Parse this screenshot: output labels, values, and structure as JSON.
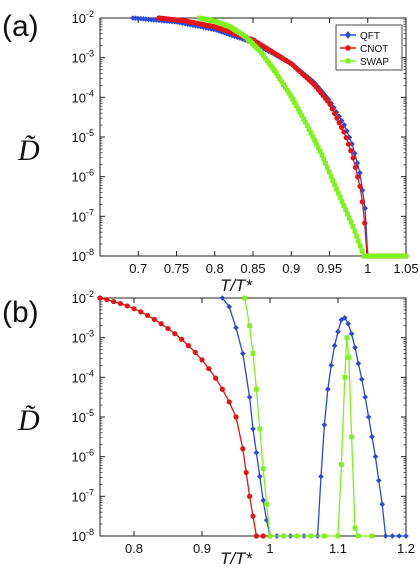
{
  "colors": {
    "QFT": "#2a49d6",
    "CNOT": "#e21414",
    "SWAP": "#7ff21c"
  },
  "chart_data": [
    {
      "panel_label": "(a)",
      "type": "line",
      "xlabel": "T/T*",
      "ylabel": "D̃",
      "y_scale": "log",
      "xlim": [
        0.65,
        1.05
      ],
      "ylim": [
        1e-08,
        0.01
      ],
      "x_ticks": [
        "0.7",
        "0.75",
        "0.8",
        "0.85",
        "0.9",
        "0.95",
        "1",
        "1.05"
      ],
      "y_tick_exponents": [
        "-8",
        "-7",
        "-6",
        "-5",
        "-4",
        "-3",
        "-2"
      ],
      "legend": {
        "position": "top-right",
        "entries": [
          "QFT",
          "CNOT",
          "SWAP"
        ]
      },
      "series": [
        {
          "name": "QFT",
          "x_start": 0.693,
          "x_end": 1.0,
          "y_log10": [
            [
              0.693,
              -2.0
            ],
            [
              0.75,
              -2.1
            ],
            [
              0.8,
              -2.29
            ],
            [
              0.85,
              -2.62
            ],
            [
              0.9,
              -3.15
            ],
            [
              0.93,
              -3.62
            ],
            [
              0.95,
              -4.08
            ],
            [
              0.97,
              -4.72
            ],
            [
              0.98,
              -5.2
            ],
            [
              0.99,
              -5.92
            ],
            [
              0.997,
              -6.85
            ],
            [
              1.0,
              -8.0
            ]
          ],
          "tail_x": [
            1.0,
            1.05
          ],
          "tail_y_log10": -8
        },
        {
          "name": "CNOT",
          "x_start": 0.727,
          "x_end": 0.999,
          "y_log10": [
            [
              0.727,
              -2.0
            ],
            [
              0.76,
              -2.07
            ],
            [
              0.8,
              -2.22
            ],
            [
              0.85,
              -2.55
            ],
            [
              0.9,
              -3.15
            ],
            [
              0.93,
              -3.68
            ],
            [
              0.95,
              -4.15
            ],
            [
              0.97,
              -4.92
            ],
            [
              0.98,
              -5.46
            ],
            [
              0.99,
              -6.25
            ],
            [
              0.995,
              -6.9
            ],
            [
              0.999,
              -8.0
            ]
          ],
          "tail_x": [
            0.999,
            1.05
          ],
          "tail_y_log10": -8
        },
        {
          "name": "SWAP",
          "x_start": 0.78,
          "x_end": 0.995,
          "y_log10": [
            [
              0.78,
              -2.0
            ],
            [
              0.8,
              -2.08
            ],
            [
              0.82,
              -2.22
            ],
            [
              0.84,
              -2.47
            ],
            [
              0.86,
              -2.85
            ],
            [
              0.88,
              -3.38
            ],
            [
              0.9,
              -3.98
            ],
            [
              0.92,
              -4.68
            ],
            [
              0.94,
              -5.45
            ],
            [
              0.96,
              -6.35
            ],
            [
              0.98,
              -7.22
            ],
            [
              0.995,
              -8.0
            ]
          ],
          "tail_x": [
            0.995,
            1.05
          ],
          "tail_y_log10": -8
        }
      ]
    },
    {
      "panel_label": "(b)",
      "type": "line",
      "xlabel": "T/T*",
      "ylabel": "D̃",
      "y_scale": "log",
      "xlim": [
        0.75,
        1.2
      ],
      "ylim": [
        1e-08,
        0.01
      ],
      "x_ticks": [
        "0.8",
        "0.9",
        "1",
        "1.1",
        "1.2"
      ],
      "y_tick_exponents": [
        "-8",
        "-7",
        "-6",
        "-5",
        "-4",
        "-3",
        "-2"
      ],
      "series": [
        {
          "name": "QFT",
          "points": [
            [
              0.93,
              -2.0
            ],
            [
              0.94,
              -2.22
            ],
            [
              0.95,
              -2.75
            ],
            [
              0.96,
              -3.4
            ],
            [
              0.97,
              -4.5
            ],
            [
              0.975,
              -5.3
            ],
            [
              0.98,
              -5.9
            ],
            [
              0.985,
              -6.5
            ],
            [
              0.99,
              -7.1
            ],
            [
              0.995,
              -7.6
            ],
            [
              1.0,
              -8.0
            ],
            [
              1.01,
              -8.0
            ],
            [
              1.02,
              -8.0
            ],
            [
              1.03,
              -8.0
            ],
            [
              1.04,
              -8.0
            ],
            [
              1.05,
              -8.0
            ],
            [
              1.06,
              -8.0
            ],
            [
              1.07,
              -8.0
            ],
            [
              1.075,
              -6.5
            ],
            [
              1.08,
              -5.2
            ],
            [
              1.085,
              -4.3
            ],
            [
              1.09,
              -3.7
            ],
            [
              1.095,
              -3.2
            ],
            [
              1.1,
              -2.85
            ],
            [
              1.105,
              -2.55
            ],
            [
              1.11,
              -2.5
            ],
            [
              1.115,
              -2.65
            ],
            [
              1.12,
              -2.9
            ],
            [
              1.125,
              -3.25
            ],
            [
              1.13,
              -3.65
            ],
            [
              1.135,
              -4.05
            ],
            [
              1.14,
              -4.5
            ],
            [
              1.145,
              -5.0
            ],
            [
              1.15,
              -5.5
            ],
            [
              1.155,
              -6.0
            ],
            [
              1.16,
              -6.6
            ],
            [
              1.165,
              -7.2
            ],
            [
              1.17,
              -8.0
            ],
            [
              1.18,
              -8.0
            ],
            [
              1.19,
              -8.0
            ],
            [
              1.2,
              -8.0
            ]
          ]
        },
        {
          "name": "CNOT",
          "points": [
            [
              0.75,
              -2.0
            ],
            [
              0.76,
              -2.04
            ],
            [
              0.77,
              -2.09
            ],
            [
              0.78,
              -2.14
            ],
            [
              0.79,
              -2.2
            ],
            [
              0.8,
              -2.27
            ],
            [
              0.81,
              -2.35
            ],
            [
              0.82,
              -2.44
            ],
            [
              0.83,
              -2.54
            ],
            [
              0.84,
              -2.65
            ],
            [
              0.85,
              -2.77
            ],
            [
              0.86,
              -2.9
            ],
            [
              0.87,
              -3.04
            ],
            [
              0.88,
              -3.2
            ],
            [
              0.89,
              -3.37
            ],
            [
              0.9,
              -3.56
            ],
            [
              0.91,
              -3.78
            ],
            [
              0.92,
              -4.02
            ],
            [
              0.93,
              -4.3
            ],
            [
              0.94,
              -4.62
            ],
            [
              0.95,
              -5.0
            ],
            [
              0.96,
              -5.8
            ],
            [
              0.965,
              -6.4
            ],
            [
              0.97,
              -7.0
            ],
            [
              0.975,
              -7.5
            ],
            [
              0.98,
              -8.0
            ],
            [
              0.99,
              -8.0
            ],
            [
              1.0,
              -8.0
            ]
          ]
        },
        {
          "name": "SWAP",
          "points": [
            [
              0.963,
              -2.0
            ],
            [
              0.97,
              -2.7
            ],
            [
              0.975,
              -3.4
            ],
            [
              0.98,
              -4.3
            ],
            [
              0.985,
              -5.3
            ],
            [
              0.99,
              -6.3
            ],
            [
              0.995,
              -7.2
            ],
            [
              1.0,
              -8.0
            ],
            [
              1.02,
              -8.0
            ],
            [
              1.04,
              -8.0
            ],
            [
              1.06,
              -8.0
            ],
            [
              1.08,
              -8.0
            ],
            [
              1.1,
              -8.0
            ],
            [
              1.105,
              -6.2
            ],
            [
              1.11,
              -4.0
            ],
            [
              1.113,
              -3.0
            ],
            [
              1.116,
              -3.5
            ],
            [
              1.12,
              -5.5
            ],
            [
              1.125,
              -7.8
            ],
            [
              1.13,
              -8.0
            ],
            [
              1.15,
              -8.0
            ]
          ]
        }
      ]
    }
  ]
}
